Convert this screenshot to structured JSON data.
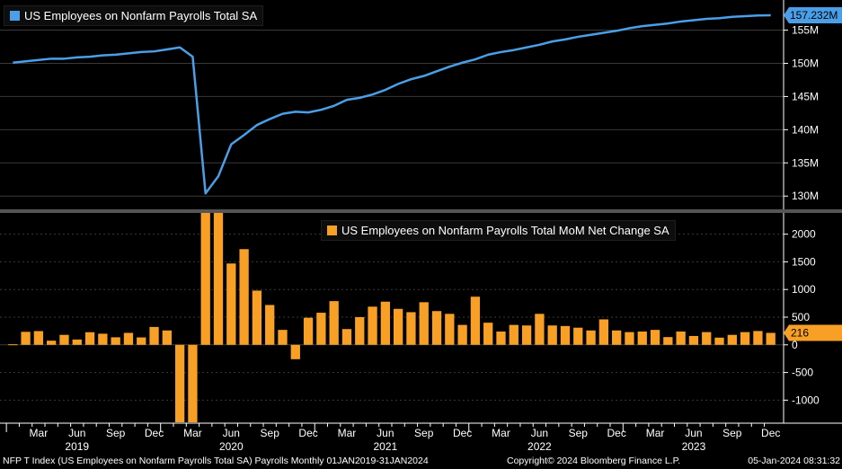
{
  "chart_data": [
    {
      "type": "line",
      "title": "US Employees on Nonfarm Payrolls Total SA",
      "color": "#4a9fe8",
      "ylim": [
        128,
        159
      ],
      "yticks": [
        130,
        135,
        140,
        145,
        150,
        155
      ],
      "ytick_labels": [
        "130M",
        "135M",
        "140M",
        "145M",
        "150M",
        "155M"
      ],
      "last_value_label": "157.232M",
      "grid": true,
      "series": [
        {
          "name": "US Employees on Nonfarm Payrolls Total SA",
          "x": [
            "2019-01",
            "2019-02",
            "2019-03",
            "2019-04",
            "2019-05",
            "2019-06",
            "2019-07",
            "2019-08",
            "2019-09",
            "2019-10",
            "2019-11",
            "2019-12",
            "2020-01",
            "2020-02",
            "2020-03",
            "2020-04",
            "2020-05",
            "2020-06",
            "2020-07",
            "2020-08",
            "2020-09",
            "2020-10",
            "2020-11",
            "2020-12",
            "2021-01",
            "2021-02",
            "2021-03",
            "2021-04",
            "2021-05",
            "2021-06",
            "2021-07",
            "2021-08",
            "2021-09",
            "2021-10",
            "2021-11",
            "2021-12",
            "2022-01",
            "2022-02",
            "2022-03",
            "2022-04",
            "2022-05",
            "2022-06",
            "2022-07",
            "2022-08",
            "2022-09",
            "2022-10",
            "2022-11",
            "2022-12",
            "2023-01",
            "2023-02",
            "2023-03",
            "2023-04",
            "2023-05",
            "2023-06",
            "2023-07",
            "2023-08",
            "2023-09",
            "2023-10",
            "2023-11",
            "2023-12"
          ],
          "values": [
            150.1,
            150.3,
            150.5,
            150.7,
            150.7,
            150.9,
            151.0,
            151.2,
            151.3,
            151.5,
            151.7,
            151.8,
            152.1,
            152.4,
            151.0,
            130.4,
            133.0,
            137.8,
            139.2,
            140.7,
            141.6,
            142.4,
            142.7,
            142.6,
            143.0,
            143.6,
            144.5,
            144.8,
            145.3,
            146.0,
            146.9,
            147.6,
            148.1,
            148.8,
            149.5,
            150.1,
            150.6,
            151.3,
            151.7,
            152.0,
            152.4,
            152.8,
            153.3,
            153.6,
            154.0,
            154.3,
            154.6,
            154.9,
            155.3,
            155.6,
            155.8,
            156.0,
            156.3,
            156.5,
            156.7,
            156.8,
            157.0,
            157.1,
            157.2,
            157.232
          ]
        }
      ]
    },
    {
      "type": "bar",
      "title": "US Employees on Nonfarm Payrolls Total MoM Net Change SA",
      "color": "#f7a025",
      "ylim": [
        -1400,
        2400
      ],
      "yticks": [
        -1000,
        -500,
        0,
        500,
        1000,
        1500,
        2000
      ],
      "ytick_labels": [
        "-1000",
        "-500",
        "0",
        "500",
        "1000",
        "1500",
        "2000"
      ],
      "last_value_label": "216",
      "grid": true,
      "series": [
        {
          "name": "US Employees on Nonfarm Payrolls Total MoM Net Change SA",
          "values": [
            10,
            235,
            248,
            75,
            180,
            96,
            228,
            201,
            136,
            216,
            134,
            323,
            260,
            -1400,
            -1400,
            2400,
            2400,
            1470,
            1730,
            980,
            720,
            270,
            -260,
            490,
            580,
            790,
            285,
            500,
            690,
            780,
            650,
            590,
            770,
            610,
            560,
            360,
            870,
            400,
            240,
            360,
            350,
            560,
            350,
            340,
            310,
            260,
            460,
            260,
            230,
            240,
            270,
            140,
            240,
            160,
            230,
            130,
            180,
            230,
            250,
            216
          ]
        }
      ]
    }
  ],
  "xaxis": {
    "month_labels": [
      "Mar",
      "Jun",
      "Sep",
      "Dec",
      "Mar",
      "Jun",
      "Sep",
      "Dec",
      "Mar",
      "Jun",
      "Sep",
      "Dec",
      "Mar",
      "Jun",
      "Sep",
      "Dec",
      "Mar",
      "Jun",
      "Sep",
      "Dec"
    ],
    "month_label_index": [
      2,
      5,
      8,
      11,
      14,
      17,
      20,
      23,
      26,
      29,
      32,
      35,
      38,
      41,
      44,
      47,
      50,
      53,
      56,
      59
    ],
    "year_labels": [
      "2019",
      "2020",
      "2021",
      "2022",
      "2023"
    ],
    "year_label_index": [
      5,
      17,
      29,
      41,
      53
    ]
  },
  "footer": {
    "left": "NFP T Index (US Employees on Nonfarm Payrolls Total SA) Payrolls  Monthly 01JAN2019-31JAN2024",
    "mid": "Copyright© 2024 Bloomberg Finance L.P.",
    "right": "05-Jan-2024 08:31:32"
  }
}
